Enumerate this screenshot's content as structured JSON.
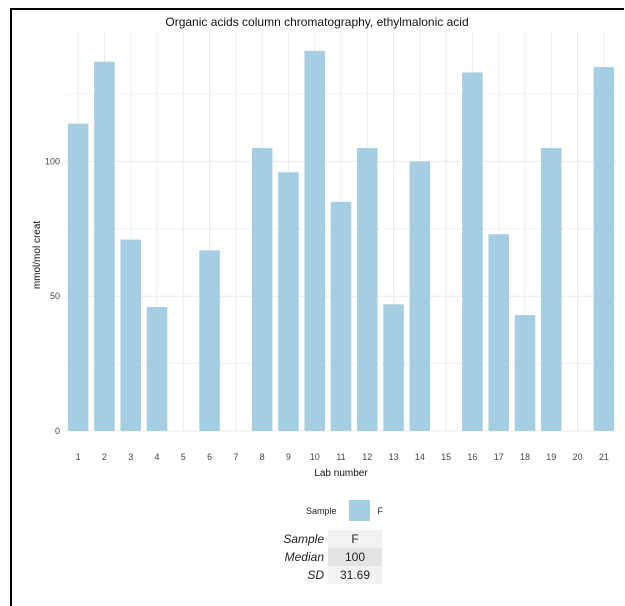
{
  "chart_data": {
    "type": "bar",
    "title": "Organic acids column chromatography, ethylmalonic acid",
    "xlabel": "Lab number",
    "ylabel": "mmol/mol creat",
    "categories": [
      "1",
      "2",
      "3",
      "4",
      "5",
      "6",
      "7",
      "8",
      "9",
      "10",
      "11",
      "12",
      "13",
      "14",
      "15",
      "16",
      "17",
      "18",
      "19",
      "20",
      "21"
    ],
    "series": [
      {
        "name": "F",
        "values": [
          114,
          137,
          71,
          46,
          null,
          67,
          null,
          105,
          96,
          141,
          85,
          105,
          47,
          100,
          null,
          133,
          73,
          43,
          105,
          null,
          135
        ]
      }
    ],
    "yticks": [
      0,
      50,
      100
    ],
    "ylim": [
      0,
      148
    ],
    "grid": true,
    "legend": {
      "title": "Sample",
      "entries": [
        "F"
      ],
      "placement": "bottom"
    },
    "colors": {
      "bar": "#a6cee3",
      "grid": "#ebebeb"
    }
  },
  "stats": {
    "rows": [
      {
        "label": "Sample",
        "value": "F"
      },
      {
        "label": "Median",
        "value": "100"
      },
      {
        "label": "SD",
        "value": "31.69"
      }
    ]
  }
}
